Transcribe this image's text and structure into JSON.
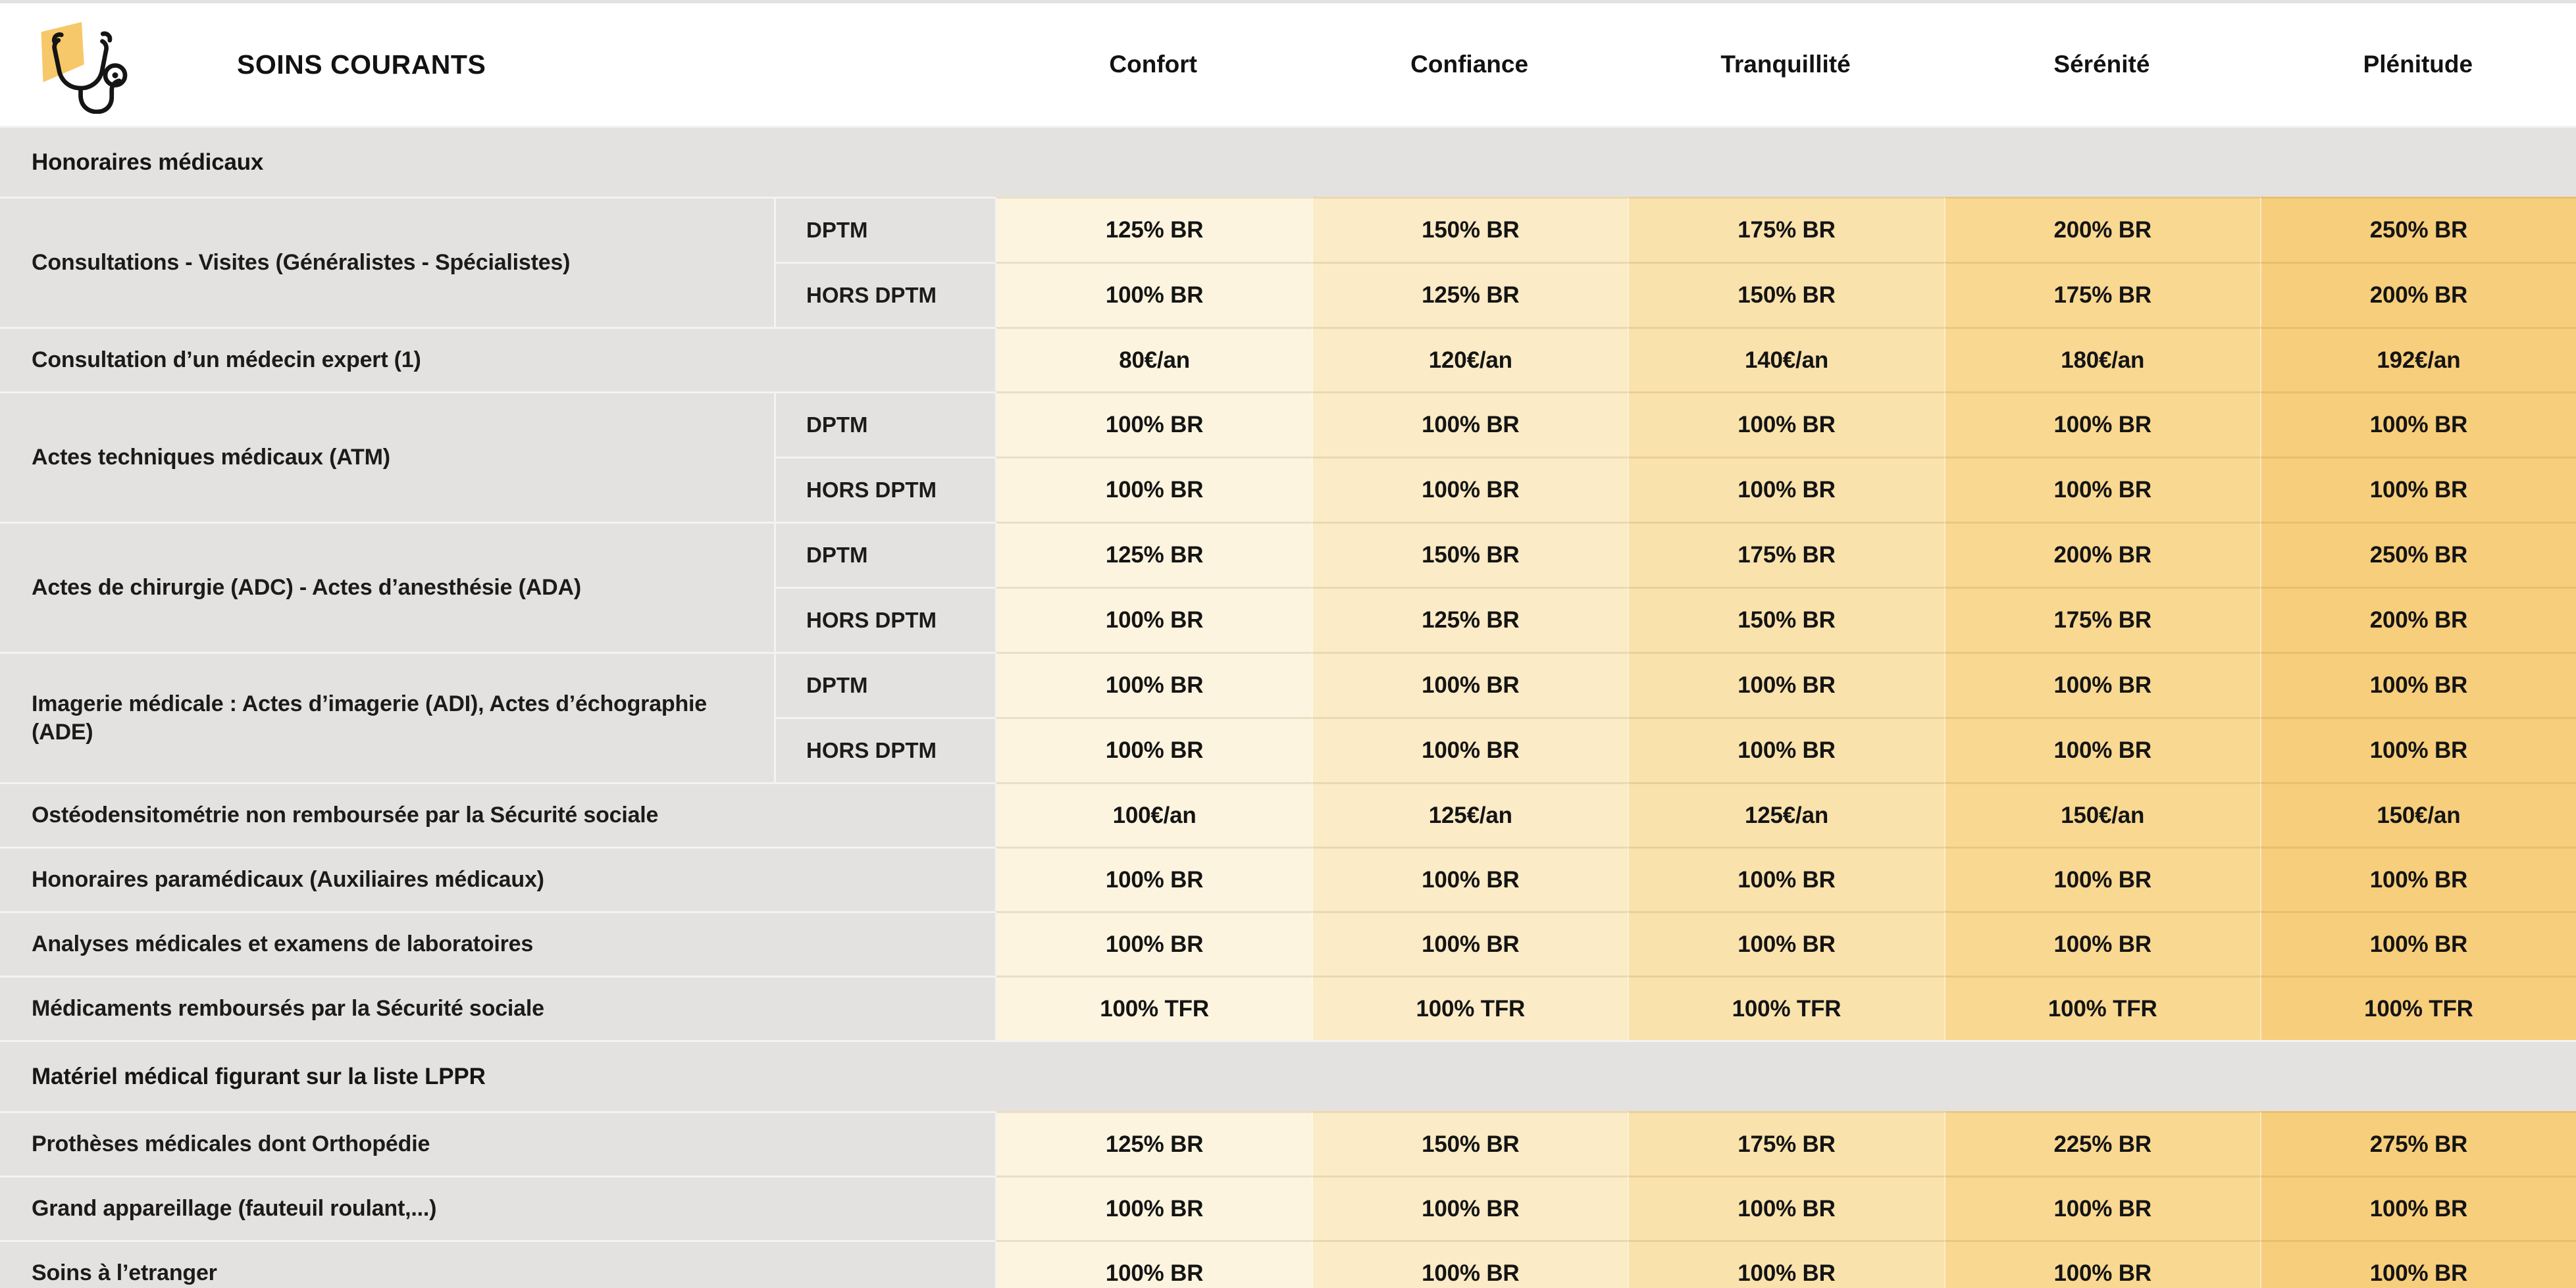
{
  "header": {
    "title": "SOINS COURANTS",
    "logo_icon": "stethoscope-icon",
    "columns": [
      "Confort",
      "Confiance",
      "Tranquillité",
      "Sérénité",
      "Plénitude"
    ]
  },
  "colors": {
    "column_tints": [
      "#FCF4DF",
      "#FBEBC6",
      "#FAE2AD",
      "#F9D892",
      "#F7CE7B"
    ],
    "section_bg": "#E4E2E0",
    "label_bg": "#E4E2E0",
    "logo_yellow": "#F6C869"
  },
  "rows": [
    {
      "type": "section",
      "label": "Honoraires médicaux"
    },
    {
      "type": "split",
      "label": "Consultations - Visites (Généralistes - Spécialistes)",
      "subrows": [
        {
          "sublabel": "DPTM",
          "values": [
            "125% BR",
            "150% BR",
            "175% BR",
            "200% BR",
            "250% BR"
          ]
        },
        {
          "sublabel": "HORS DPTM",
          "values": [
            "100% BR",
            "125% BR",
            "150% BR",
            "175% BR",
            "200% BR"
          ]
        }
      ]
    },
    {
      "type": "simple",
      "label": "Consultation d’un médecin expert (1)",
      "values": [
        "80€/an",
        "120€/an",
        "140€/an",
        "180€/an",
        "192€/an"
      ]
    },
    {
      "type": "split",
      "label": "Actes techniques médicaux (ATM)",
      "subrows": [
        {
          "sublabel": "DPTM",
          "values": [
            "100% BR",
            "100% BR",
            "100% BR",
            "100% BR",
            "100% BR"
          ]
        },
        {
          "sublabel": "HORS DPTM",
          "values": [
            "100% BR",
            "100% BR",
            "100% BR",
            "100% BR",
            "100% BR"
          ]
        }
      ]
    },
    {
      "type": "split",
      "label": "Actes de chirurgie (ADC) - Actes d’anesthésie (ADA)",
      "subrows": [
        {
          "sublabel": "DPTM",
          "values": [
            "125% BR",
            "150% BR",
            "175% BR",
            "200% BR",
            "250% BR"
          ]
        },
        {
          "sublabel": "HORS DPTM",
          "values": [
            "100% BR",
            "125% BR",
            "150% BR",
            "175% BR",
            "200% BR"
          ]
        }
      ]
    },
    {
      "type": "split",
      "label": "Imagerie médicale : Actes d’imagerie (ADI), Actes d’échographie (ADE)",
      "subrows": [
        {
          "sublabel": "DPTM",
          "values": [
            "100% BR",
            "100% BR",
            "100% BR",
            "100% BR",
            "100% BR"
          ]
        },
        {
          "sublabel": "HORS DPTM",
          "values": [
            "100% BR",
            "100% BR",
            "100% BR",
            "100% BR",
            "100% BR"
          ]
        }
      ]
    },
    {
      "type": "simple",
      "label": "Ostéodensitométrie non remboursée par la Sécurité sociale",
      "values": [
        "100€/an",
        "125€/an",
        "125€/an",
        "150€/an",
        "150€/an"
      ]
    },
    {
      "type": "simple",
      "label": "Honoraires paramédicaux (Auxiliaires médicaux)",
      "values": [
        "100% BR",
        "100% BR",
        "100% BR",
        "100% BR",
        "100% BR"
      ]
    },
    {
      "type": "simple",
      "label": "Analyses médicales et examens de laboratoires",
      "values": [
        "100% BR",
        "100% BR",
        "100% BR",
        "100% BR",
        "100% BR"
      ]
    },
    {
      "type": "simple",
      "label": "Médicaments remboursés par la Sécurité sociale",
      "values": [
        "100% TFR",
        "100% TFR",
        "100% TFR",
        "100% TFR",
        "100% TFR"
      ]
    },
    {
      "type": "section",
      "label": "Matériel médical figurant sur la liste LPPR"
    },
    {
      "type": "simple",
      "label": "Prothèses médicales dont Orthopédie",
      "values": [
        "125% BR",
        "150% BR",
        "175% BR",
        "225% BR",
        "275% BR"
      ]
    },
    {
      "type": "simple",
      "label": "Grand appareillage (fauteuil roulant,...)",
      "values": [
        "100% BR",
        "100% BR",
        "100% BR",
        "100% BR",
        "100% BR"
      ]
    },
    {
      "type": "simple",
      "label": "Soins à l’etranger",
      "values": [
        "100% BR",
        "100% BR",
        "100% BR",
        "100% BR",
        "100% BR"
      ]
    }
  ]
}
